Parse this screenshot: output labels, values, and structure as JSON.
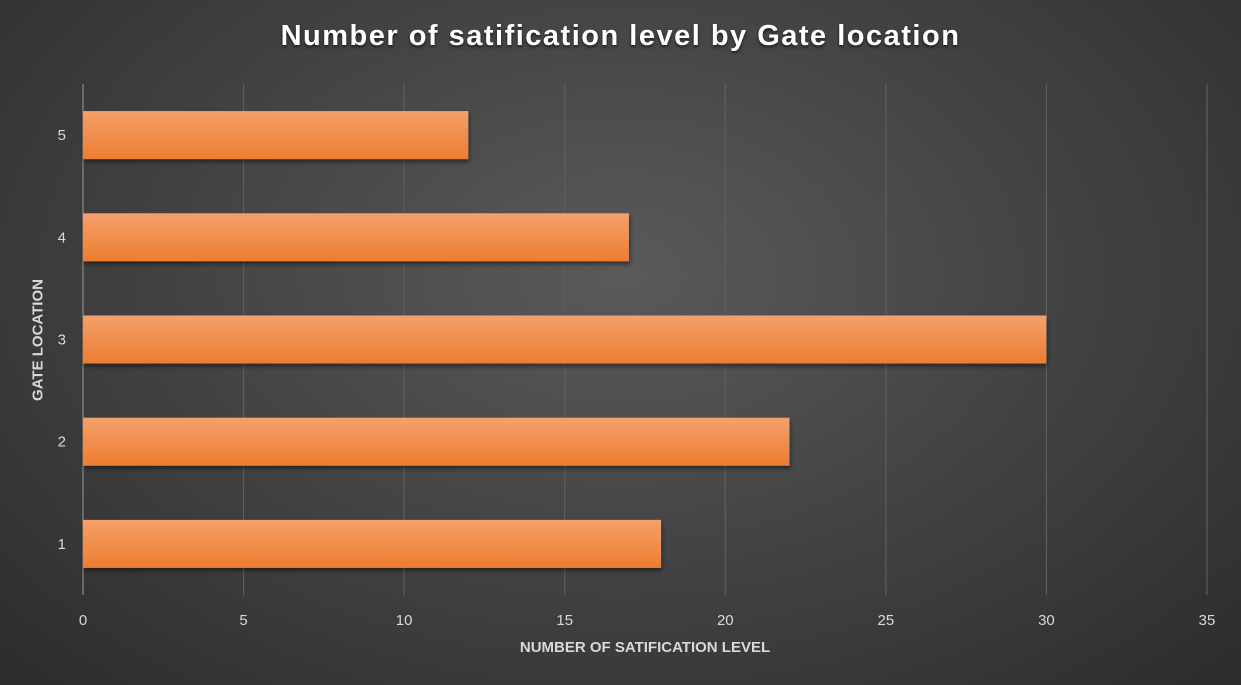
{
  "chart_data": {
    "type": "bar",
    "orientation": "horizontal",
    "title": "Number of satification level by Gate location",
    "xlabel": "NUMBER OF SATIFICATION LEVEL",
    "ylabel": "GATE LOCATION",
    "categories": [
      "1",
      "2",
      "3",
      "4",
      "5"
    ],
    "values": [
      18,
      22,
      30,
      17,
      12
    ],
    "xlim": [
      0,
      35
    ],
    "xticks": [
      0,
      5,
      10,
      15,
      20,
      25,
      30,
      35
    ],
    "grid": true,
    "legend": "none",
    "colors": {
      "bar": "#ed7d31",
      "bar_highlight": "#f4a06a",
      "background": "#404040",
      "grid": "#5e5e5e",
      "text": "#d9d9d9"
    }
  }
}
